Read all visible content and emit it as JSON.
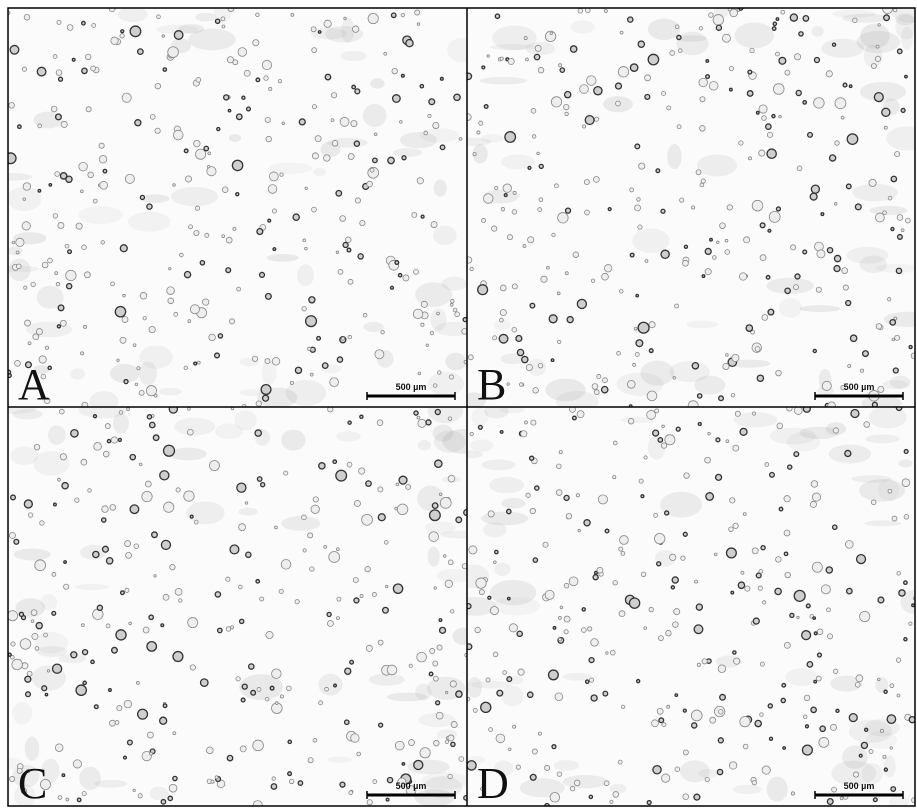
{
  "panels": [
    {
      "label": "A",
      "scale_bar": "500 µm"
    },
    {
      "label": "B",
      "scale_bar": "500 µm"
    },
    {
      "label": "C",
      "scale_bar": "500 µm"
    },
    {
      "label": "D",
      "scale_bar": "500 µm"
    }
  ]
}
